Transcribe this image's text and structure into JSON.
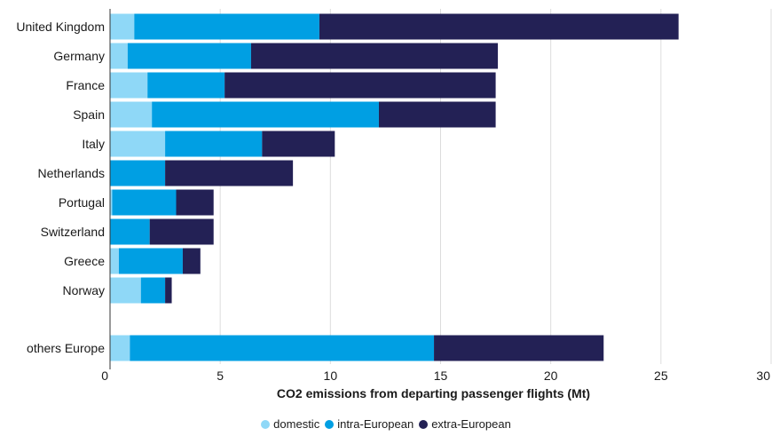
{
  "chart_data": {
    "type": "bar",
    "orientation": "horizontal",
    "stacked": true,
    "categories": [
      "United Kingdom",
      "Germany",
      "France",
      "Spain",
      "Italy",
      "Netherlands",
      "Portugal",
      "Switzerland",
      "Greece",
      "Norway",
      "others Europe"
    ],
    "series": [
      {
        "name": "domestic",
        "color": "#8fd8f7",
        "values": [
          1.1,
          0.8,
          1.7,
          1.9,
          2.5,
          0.0,
          0.1,
          0.0,
          0.4,
          1.4,
          0.9
        ]
      },
      {
        "name": "intra-European",
        "color": "#009fe3",
        "values": [
          8.4,
          5.6,
          3.5,
          10.3,
          4.4,
          2.5,
          2.9,
          1.8,
          2.9,
          1.1,
          13.8
        ]
      },
      {
        "name": "extra-European",
        "color": "#232155",
        "values": [
          16.3,
          11.2,
          12.3,
          5.3,
          3.3,
          5.8,
          1.7,
          2.9,
          0.8,
          0.3,
          7.7
        ]
      }
    ],
    "xlabel": "CO2 emissions from departing passenger flights (Mt)",
    "ylabel": "",
    "xlim": [
      0,
      30
    ],
    "xticks": [
      "0",
      "5",
      "10",
      "15",
      "20",
      "25",
      "30"
    ],
    "grid": "vertical",
    "legend": "bottom-center"
  }
}
